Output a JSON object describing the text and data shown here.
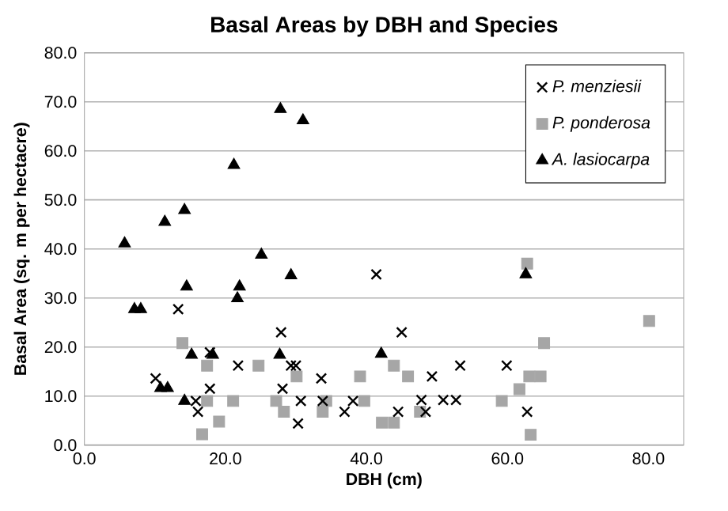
{
  "chart_data": {
    "type": "scatter",
    "title": "Basal Areas by DBH and Species",
    "xlabel": "DBH (cm)",
    "ylabel": "Basal Area (sq. m per hectacre)",
    "xlim": [
      0,
      85
    ],
    "ylim": [
      0,
      80
    ],
    "xticks": [
      {
        "value": 0,
        "label": "0.0"
      },
      {
        "value": 20,
        "label": "20.0"
      },
      {
        "value": 40,
        "label": "40.0"
      },
      {
        "value": 60,
        "label": "60.0"
      },
      {
        "value": 80,
        "label": "80.0"
      }
    ],
    "yticks": [
      {
        "value": 0,
        "label": "0.0"
      },
      {
        "value": 10,
        "label": "10.0"
      },
      {
        "value": 20,
        "label": "20.0"
      },
      {
        "value": 30,
        "label": "30.0"
      },
      {
        "value": 40,
        "label": "40.0"
      },
      {
        "value": 50,
        "label": "50.0"
      },
      {
        "value": 60,
        "label": "60.0"
      },
      {
        "value": 70,
        "label": "70.0"
      },
      {
        "value": 80,
        "label": "80.0"
      }
    ],
    "grid": "y",
    "legend": "top right",
    "series": [
      {
        "name": "P. menziesii",
        "color": "#000000",
        "marker": "cross",
        "x": [
          13.3,
          27.9,
          17.8,
          21.8,
          29.3,
          30.0,
          10.1,
          33.6,
          17.8,
          28.1,
          15.8,
          30.7,
          16.1,
          30.3,
          36.9,
          33.8,
          38.1,
          41.4,
          45.0,
          53.3,
          59.9,
          49.3,
          47.8,
          48.4,
          50.9,
          52.7,
          44.5,
          62.8
        ],
        "values": [
          27.7,
          23.0,
          18.9,
          16.2,
          16.2,
          16.2,
          13.6,
          13.6,
          11.5,
          11.5,
          9.0,
          9.0,
          6.8,
          4.4,
          6.8,
          9.0,
          9.0,
          34.8,
          23.0,
          16.2,
          16.2,
          14.0,
          9.2,
          6.8,
          9.2,
          9.2,
          6.8,
          6.8
        ]
      },
      {
        "name": "P. ponderosa",
        "color": "#a6a6a6",
        "marker": "square",
        "x": [
          13.9,
          17.4,
          24.7,
          30.1,
          17.4,
          21.1,
          27.2,
          28.3,
          34.3,
          33.8,
          19.1,
          16.7,
          39.1,
          39.7,
          43.9,
          45.9,
          42.2,
          43.9,
          47.6,
          59.2,
          61.7,
          63.1,
          64.7,
          65.2,
          62.8,
          63.3,
          80.1
        ],
        "values": [
          20.8,
          16.2,
          16.2,
          14.0,
          9.0,
          9.0,
          9.0,
          6.8,
          9.0,
          6.8,
          4.8,
          2.2,
          14.0,
          9.0,
          16.2,
          14.0,
          4.6,
          4.6,
          6.8,
          9.0,
          11.4,
          14.0,
          14.0,
          20.8,
          37.0,
          2.1,
          25.3
        ]
      },
      {
        "name": "A. lasiocarpa",
        "color": "#000000",
        "marker": "triangle",
        "x": [
          5.7,
          11.4,
          14.2,
          21.2,
          27.8,
          31.0,
          25.1,
          29.3,
          14.5,
          22.0,
          21.7,
          7.1,
          8.0,
          15.2,
          18.2,
          27.7,
          10.8,
          11.8,
          14.2,
          42.1,
          62.6
        ],
        "values": [
          41.1,
          45.5,
          47.9,
          57.1,
          68.5,
          66.2,
          38.8,
          34.6,
          32.3,
          32.3,
          29.9,
          27.7,
          27.7,
          18.4,
          18.4,
          18.4,
          11.6,
          11.6,
          9.0,
          18.6,
          34.8
        ]
      }
    ]
  }
}
